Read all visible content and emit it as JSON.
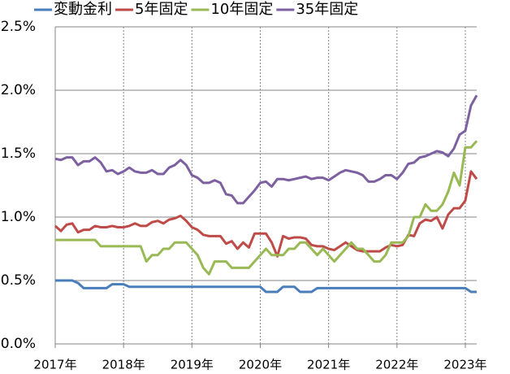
{
  "chart_data": {
    "type": "line",
    "categories": [
      "2017年",
      null,
      null,
      null,
      null,
      null,
      null,
      null,
      null,
      null,
      null,
      null,
      "2018年",
      null,
      null,
      null,
      null,
      null,
      null,
      null,
      null,
      null,
      null,
      null,
      "2019年",
      null,
      null,
      null,
      null,
      null,
      null,
      null,
      null,
      null,
      null,
      null,
      "2020年",
      null,
      null,
      null,
      null,
      null,
      null,
      null,
      null,
      null,
      null,
      null,
      "2021年",
      null,
      null,
      null,
      null,
      null,
      null,
      null,
      null,
      null,
      null,
      null,
      "2022年",
      null,
      null,
      null,
      null,
      null,
      null,
      null,
      null,
      null,
      null,
      null,
      "2023年",
      null,
      null
    ],
    "series": [
      {
        "name": "変動金利",
        "color": "#4a7ebb",
        "values": [
          0.5,
          0.5,
          0.5,
          0.5,
          0.48,
          0.44,
          0.44,
          0.44,
          0.44,
          0.44,
          0.47,
          0.47,
          0.47,
          0.45,
          0.45,
          0.45,
          0.45,
          0.45,
          0.45,
          0.45,
          0.45,
          0.45,
          0.45,
          0.45,
          0.45,
          0.45,
          0.45,
          0.45,
          0.45,
          0.45,
          0.45,
          0.45,
          0.45,
          0.45,
          0.45,
          0.45,
          0.45,
          0.41,
          0.41,
          0.41,
          0.45,
          0.45,
          0.45,
          0.41,
          0.41,
          0.41,
          0.44,
          0.44,
          0.44,
          0.44,
          0.44,
          0.44,
          0.44,
          0.44,
          0.44,
          0.44,
          0.44,
          0.44,
          0.44,
          0.44,
          0.44,
          0.44,
          0.44,
          0.44,
          0.44,
          0.44,
          0.44,
          0.44,
          0.44,
          0.44,
          0.44,
          0.44,
          0.44,
          0.41,
          0.41
        ]
      },
      {
        "name": "5年固定",
        "color": "#be4b48",
        "values": [
          0.93,
          0.89,
          0.94,
          0.95,
          0.88,
          0.9,
          0.9,
          0.93,
          0.92,
          0.92,
          0.93,
          0.92,
          0.92,
          0.93,
          0.95,
          0.93,
          0.93,
          0.96,
          0.97,
          0.95,
          0.98,
          0.99,
          1.01,
          0.97,
          0.92,
          0.9,
          0.86,
          0.85,
          0.85,
          0.85,
          0.79,
          0.81,
          0.75,
          0.8,
          0.76,
          0.87,
          0.87,
          0.87,
          0.8,
          0.69,
          0.85,
          0.83,
          0.84,
          0.84,
          0.83,
          0.78,
          0.77,
          0.77,
          0.75,
          0.74,
          0.77,
          0.8,
          0.77,
          0.74,
          0.73,
          0.73,
          0.73,
          0.73,
          0.76,
          0.78,
          0.77,
          0.78,
          0.86,
          0.85,
          0.95,
          0.98,
          0.97,
          1.0,
          0.91,
          1.02,
          1.07,
          1.07,
          1.13,
          1.36,
          1.3
        ]
      },
      {
        "name": "10年固定",
        "color": "#98b954",
        "values": [
          0.82,
          0.82,
          0.82,
          0.82,
          0.82,
          0.82,
          0.82,
          0.82,
          0.77,
          0.77,
          0.77,
          0.77,
          0.77,
          0.77,
          0.77,
          0.77,
          0.65,
          0.7,
          0.7,
          0.75,
          0.75,
          0.8,
          0.8,
          0.8,
          0.75,
          0.7,
          0.6,
          0.55,
          0.65,
          0.65,
          0.65,
          0.6,
          0.6,
          0.6,
          0.6,
          0.65,
          0.7,
          0.75,
          0.7,
          0.7,
          0.7,
          0.75,
          0.75,
          0.8,
          0.8,
          0.75,
          0.7,
          0.75,
          0.7,
          0.65,
          0.7,
          0.75,
          0.8,
          0.75,
          0.75,
          0.7,
          0.65,
          0.65,
          0.7,
          0.8,
          0.8,
          0.8,
          0.85,
          1.0,
          1.0,
          1.1,
          1.05,
          1.05,
          1.1,
          1.2,
          1.35,
          1.25,
          1.55,
          1.55,
          1.6
        ]
      },
      {
        "name": "35年固定",
        "color": "#7d60a0",
        "values": [
          1.46,
          1.45,
          1.47,
          1.47,
          1.41,
          1.44,
          1.44,
          1.47,
          1.43,
          1.36,
          1.37,
          1.34,
          1.36,
          1.39,
          1.36,
          1.35,
          1.35,
          1.37,
          1.34,
          1.34,
          1.39,
          1.41,
          1.45,
          1.41,
          1.33,
          1.31,
          1.27,
          1.27,
          1.29,
          1.27,
          1.18,
          1.17,
          1.11,
          1.11,
          1.16,
          1.21,
          1.27,
          1.28,
          1.24,
          1.3,
          1.3,
          1.29,
          1.3,
          1.31,
          1.32,
          1.3,
          1.31,
          1.31,
          1.29,
          1.32,
          1.35,
          1.37,
          1.36,
          1.35,
          1.33,
          1.28,
          1.28,
          1.3,
          1.33,
          1.33,
          1.3,
          1.35,
          1.42,
          1.43,
          1.47,
          1.48,
          1.5,
          1.52,
          1.51,
          1.48,
          1.54,
          1.65,
          1.68,
          1.88,
          1.96
        ]
      }
    ],
    "ylim": [
      0,
      2.5
    ],
    "yticks": [
      {
        "value": 0,
        "label": "0.0%"
      },
      {
        "value": 0.5,
        "label": "0.5%"
      },
      {
        "value": 1,
        "label": "1.0%"
      },
      {
        "value": 1.5,
        "label": "1.5%"
      },
      {
        "value": 2,
        "label": "2.0%"
      },
      {
        "value": 2.5,
        "label": "2.5%"
      }
    ],
    "grid": true
  }
}
